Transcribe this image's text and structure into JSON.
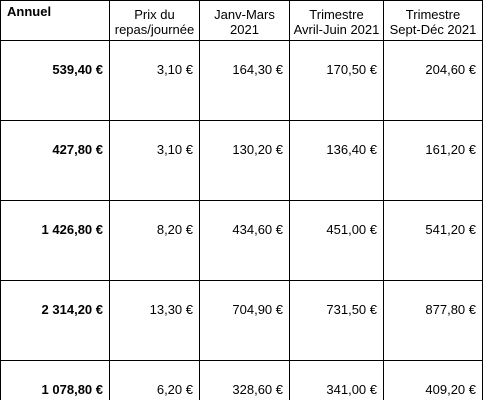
{
  "table": {
    "headers": [
      {
        "line1": "Annuel",
        "line2": ""
      },
      {
        "line1": "Prix du",
        "line2": "repas/journée"
      },
      {
        "line1": "Janv-Mars",
        "line2": "2021"
      },
      {
        "line1": "Trimestre",
        "line2": "Avril-Juin 2021"
      },
      {
        "line1": "Trimestre",
        "line2": "Sept-Déc  2021"
      }
    ],
    "rows": [
      [
        "539,40 €",
        "3,10 €",
        "164,30 €",
        "170,50 €",
        "204,60 €"
      ],
      [
        "427,80 €",
        "3,10 €",
        "130,20 €",
        "136,40 €",
        "161,20 €"
      ],
      [
        "1 426,80 €",
        "8,20 €",
        "434,60 €",
        "451,00 €",
        "541,20 €"
      ],
      [
        "2 314,20 €",
        "13,30 €",
        "704,90 €",
        "731,50 €",
        "877,80 €"
      ],
      [
        "1 078,80 €",
        "6,20 €",
        "328,60 €",
        "341,00 €",
        "409,20 €"
      ]
    ]
  }
}
